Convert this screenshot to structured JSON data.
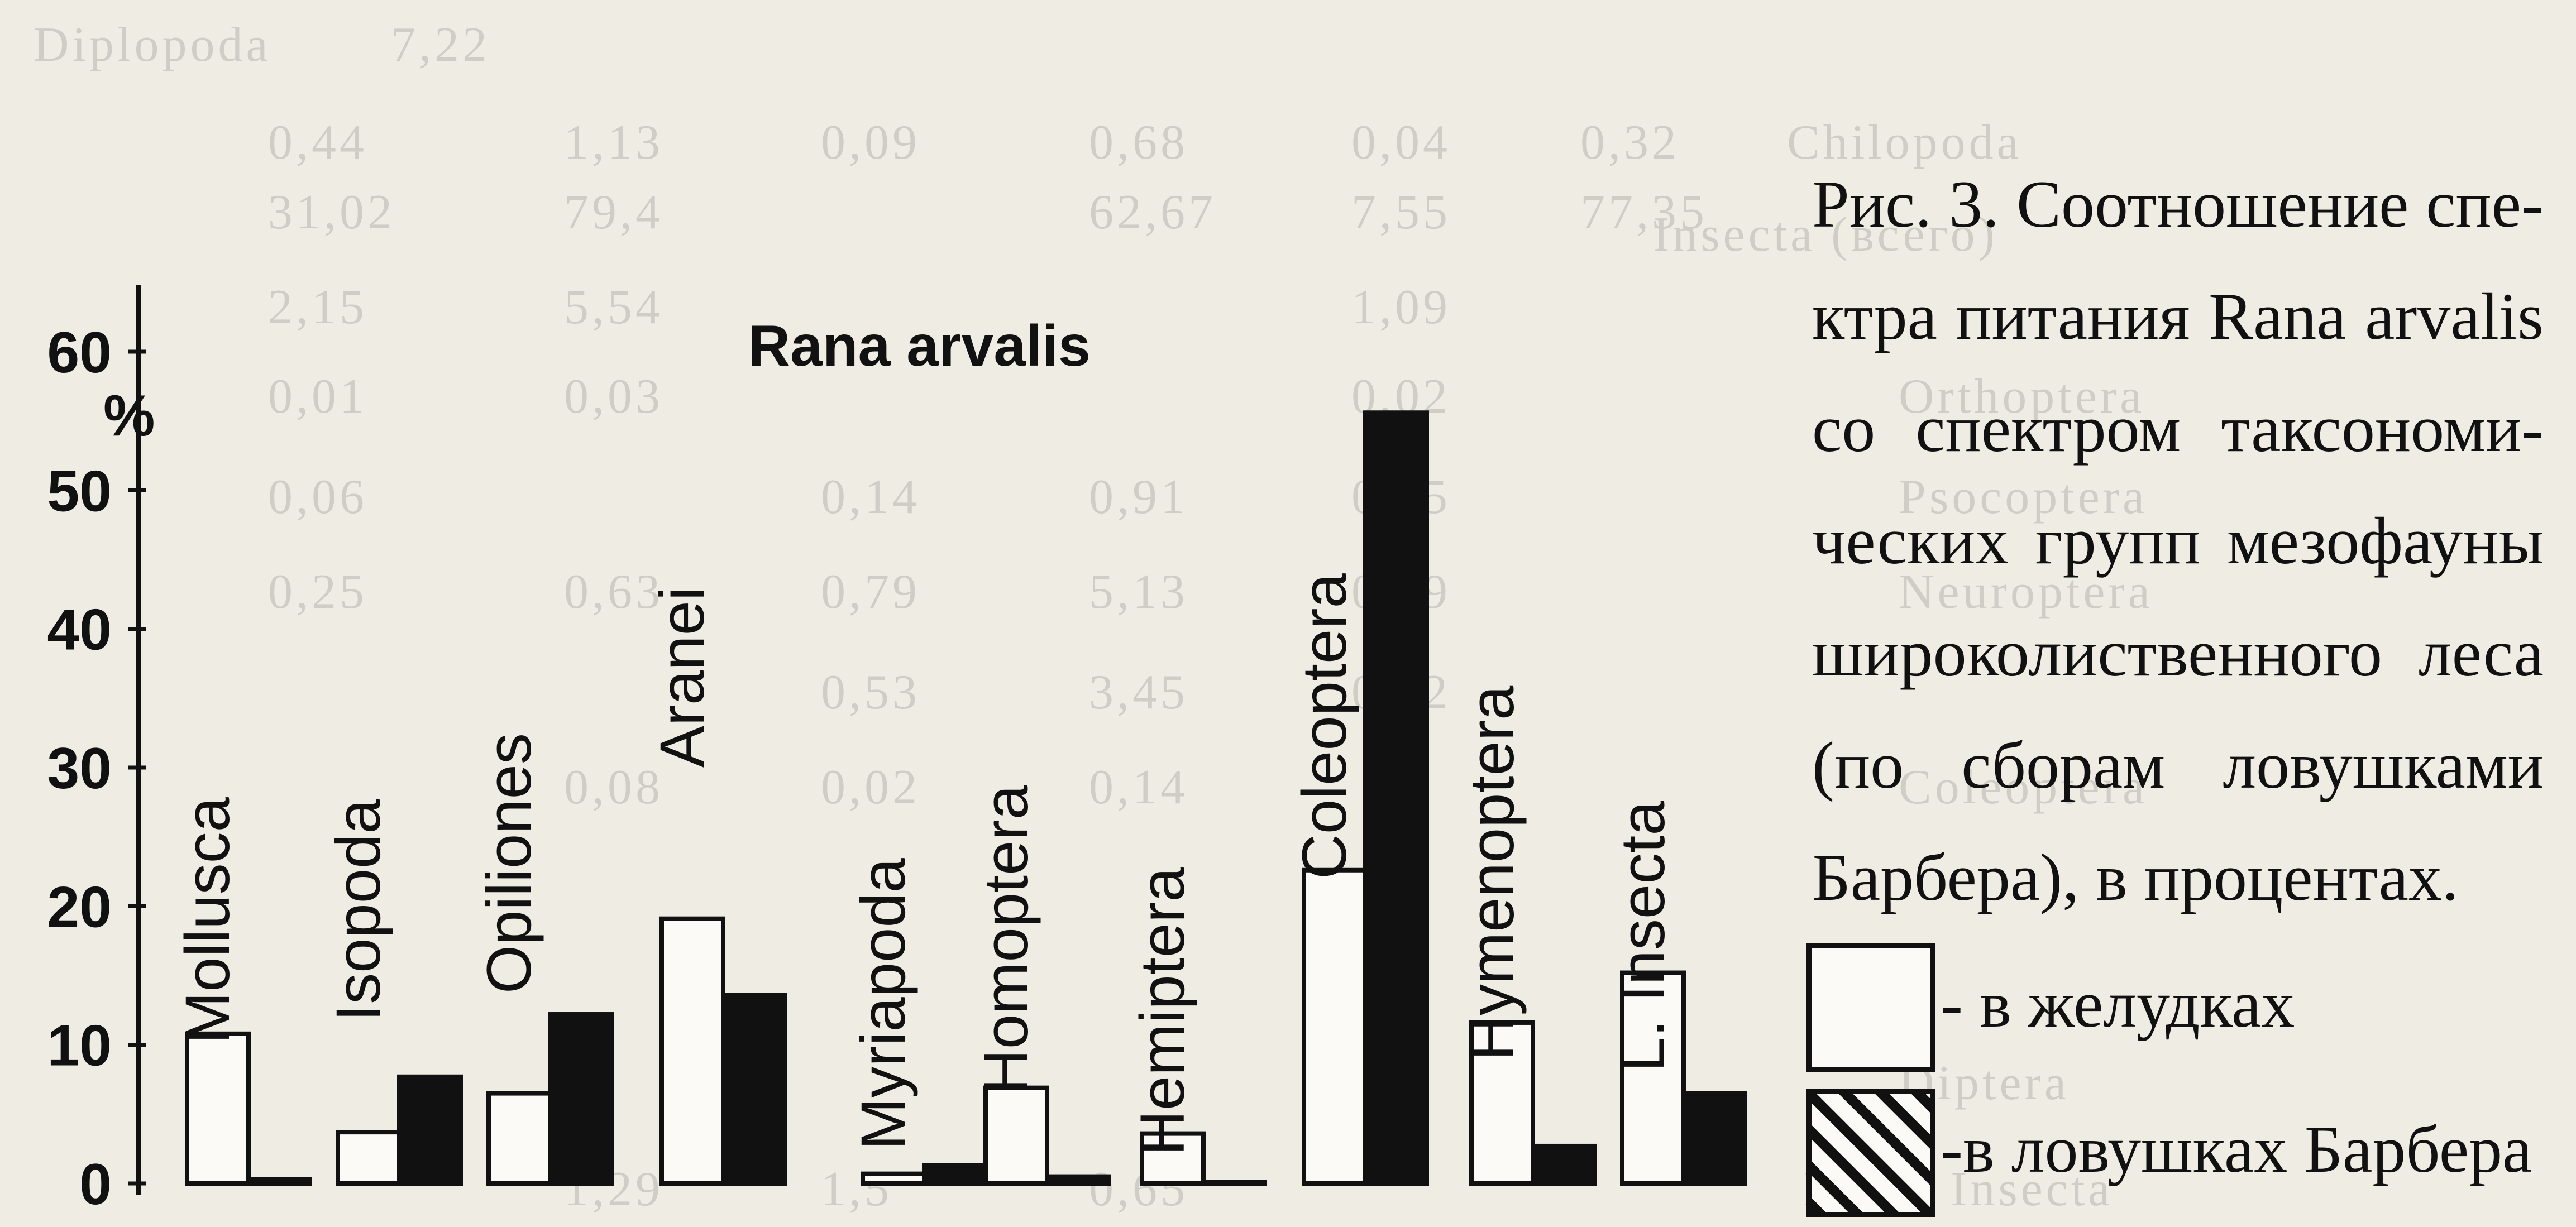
{
  "chart_data": {
    "type": "bar",
    "title": "Rana arvalis",
    "ylabel": "%",
    "ylim": [
      0,
      60
    ],
    "yticks": [
      0,
      10,
      20,
      30,
      40,
      50,
      60
    ],
    "categories": [
      "Mollusca",
      "Isopoda",
      "Opiliones",
      "Aranei",
      "Myriapoda",
      "Homoptera",
      "Hemiptera",
      "Coleoptera",
      "Hymenoptera",
      "L. Insecta"
    ],
    "series": [
      {
        "name": "- в желудках",
        "style": "open",
        "values": [
          10.8,
          3.7,
          6.5,
          19.1,
          0.7,
          6.9,
          3.6,
          22.6,
          11.6,
          15.2
        ]
      },
      {
        "name": "-в ловушках Барбера",
        "style": "filled",
        "values": [
          0.3,
          7.7,
          12.2,
          13.6,
          1.3,
          0.5,
          0.1,
          55.6,
          2.7,
          6.5
        ]
      }
    ],
    "grid": false,
    "legend_position": "right"
  },
  "caption": {
    "lines": [
      "Рис. 3. Соотношение спе-",
      "ктра питания Rana arvalis",
      "со спектром таксономи-",
      "ческих групп мезофауны",
      "широколиственного леса",
      "(по сборам ловушками",
      "Барбера), в процентах."
    ]
  },
  "background_text": {
    "lines": [
      "Diplopoda",
      "Chilopoda",
      "Insecta (всего)",
      "Orthoptera",
      "Psocoptera",
      "Neuroptera",
      "Coleoptera",
      "Diptera",
      "Larva Insecta",
      "7,22",
      "0,44",
      "1,13",
      "0,09",
      "0,68",
      "0,04",
      "0,32",
      "31,02",
      "79,4",
      "62,67",
      "7,55",
      "77,35",
      "2,15",
      "5,54",
      "1,09",
      "0,01",
      "0,03",
      "0,02",
      "0,06",
      "0,14",
      "0,91",
      "0,15",
      "0,25",
      "0,63",
      "0,79",
      "5,13",
      "0,59",
      "0,53",
      "3,45",
      "0,32",
      "0,08",
      "0,02",
      "0,14",
      "1,29",
      "0,65",
      "1,5"
    ]
  }
}
